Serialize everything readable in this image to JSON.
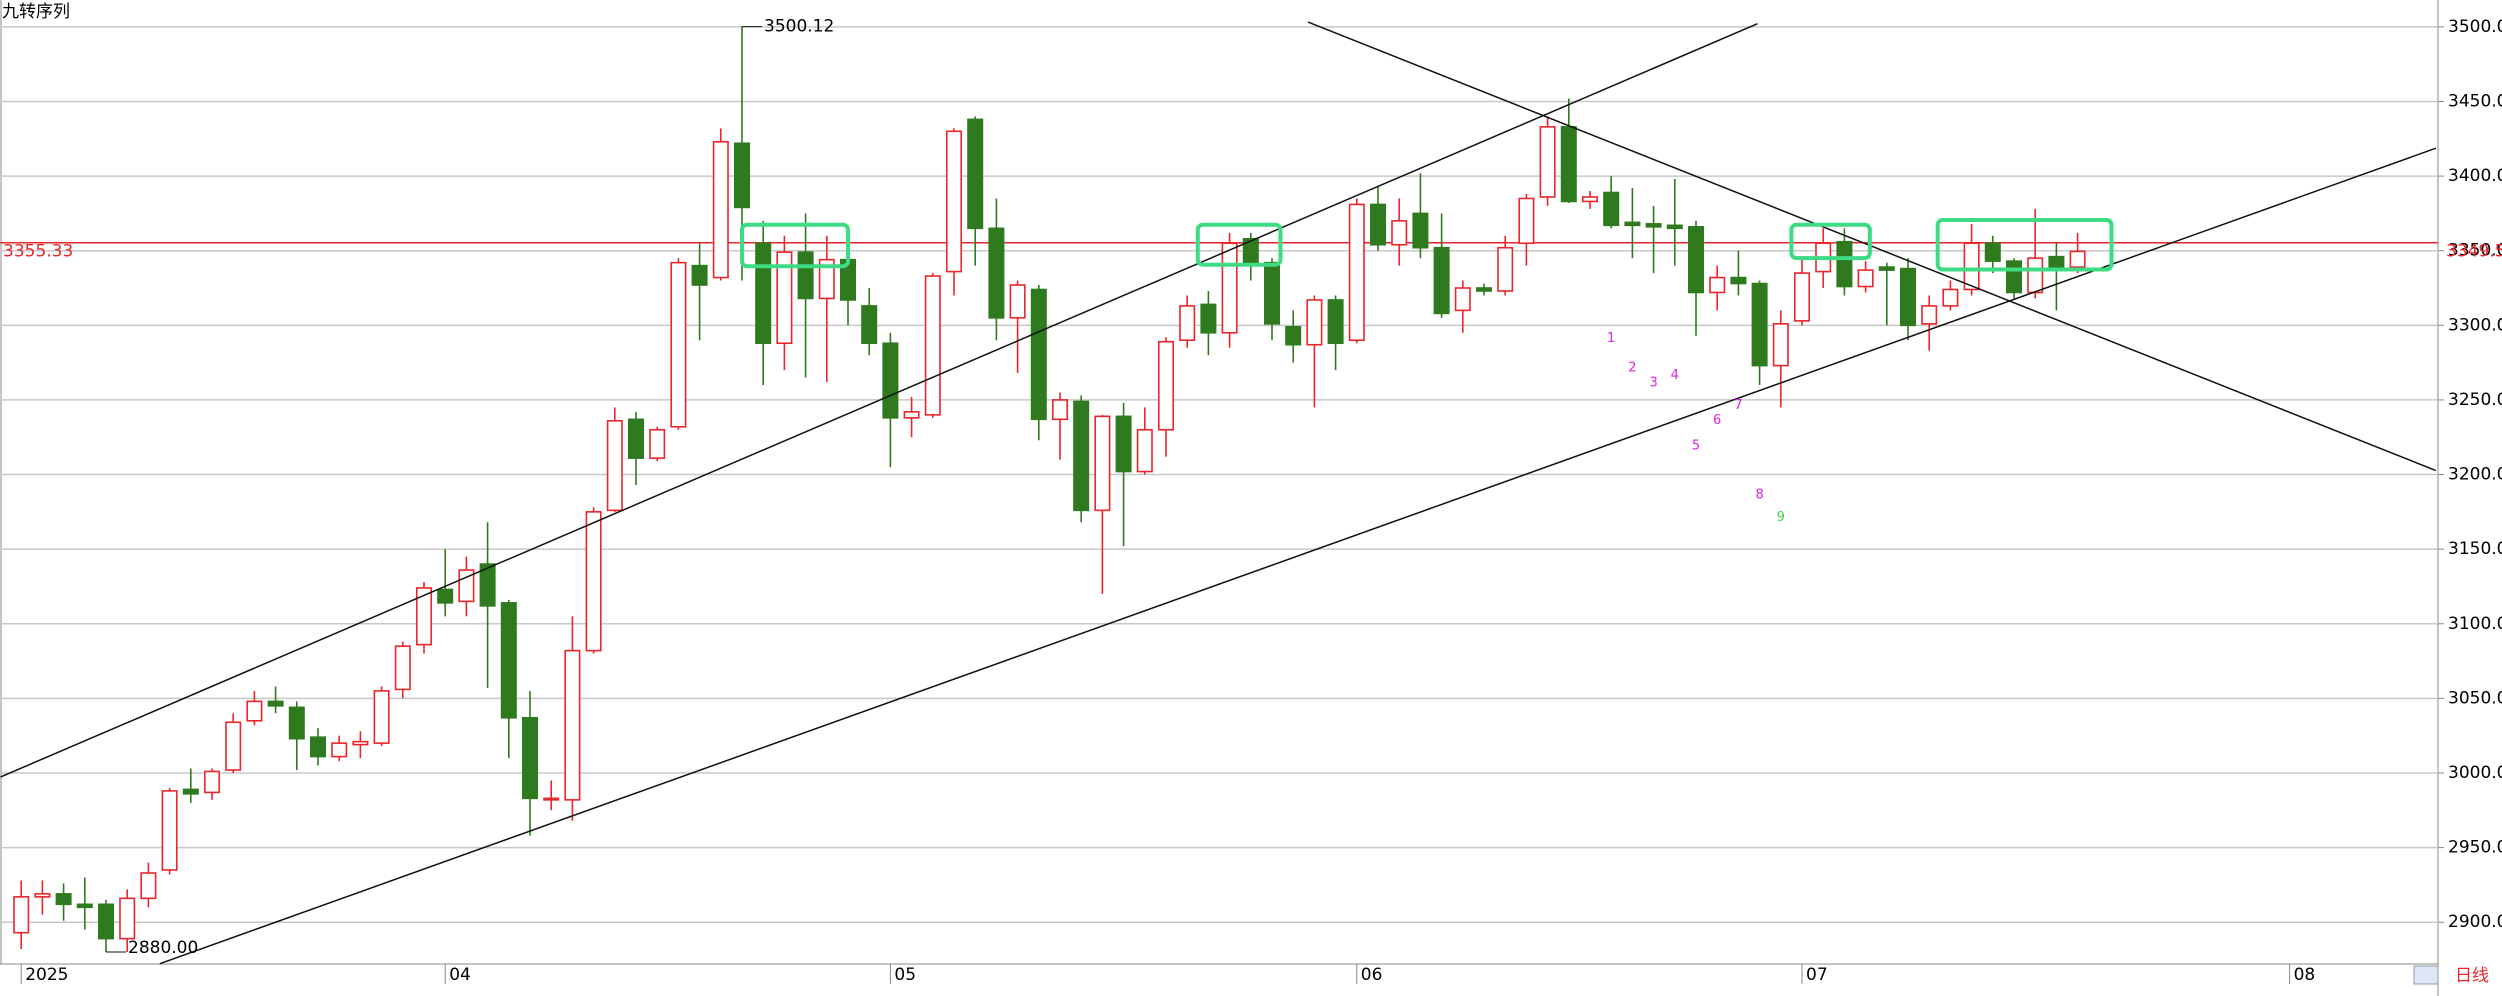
{
  "chart_data": {
    "type": "candlestick",
    "title": "九转序列",
    "period_label": "日线",
    "open": [
      2893,
      2917,
      2919,
      2912,
      2912,
      2889,
      2916,
      2935,
      2989,
      2987,
      3002,
      3035,
      3048,
      3044,
      3024,
      3011,
      3019,
      3020,
      3056,
      3086,
      3123,
      3115,
      3140,
      3114,
      3037,
      2982,
      2982,
      3082,
      3176,
      3237,
      3211,
      3232,
      3340,
      3332,
      3422,
      3355,
      3288,
      3349,
      3318,
      3344,
      3313,
      3288,
      3238,
      3240,
      3336,
      3438,
      3365,
      3305,
      3324,
      3237,
      3249,
      3176,
      3239,
      3202,
      3230,
      3290,
      3314,
      3295,
      3358,
      3342,
      3299,
      3287,
      3317,
      3290,
      3381,
      3354,
      3375,
      3352,
      3310,
      3325,
      3323,
      3355,
      3386,
      3433,
      3383,
      3389,
      3369,
      3368,
      3367,
      3366,
      3322,
      3332,
      3328,
      3273,
      3303,
      3336,
      3356,
      3326,
      3339,
      3338,
      3301,
      3313,
      3324,
      3355,
      3343,
      3322,
      3346,
      3339
    ],
    "high": [
      2928,
      2928,
      2926,
      2930,
      2915,
      2922,
      2940,
      2990,
      3003,
      3003,
      3040,
      3055,
      3058,
      3048,
      3030,
      3025,
      3028,
      3058,
      3088,
      3128,
      3150,
      3145,
      3168,
      3116,
      3055,
      2995,
      3105,
      3178,
      3245,
      3242,
      3232,
      3345,
      3355,
      3432,
      3500.12,
      3370,
      3360,
      3375,
      3360,
      3352,
      3325,
      3295,
      3252,
      3335,
      3432,
      3440,
      3385,
      3330,
      3327,
      3255,
      3253,
      3240,
      3248,
      3245,
      3292,
      3320,
      3323,
      3362,
      3362,
      3345,
      3310,
      3320,
      3320,
      3385,
      3393,
      3385,
      3402,
      3375,
      3330,
      3328,
      3360,
      3388,
      3440,
      3452,
      3390,
      3400,
      3392,
      3380,
      3398,
      3370,
      3340,
      3350,
      3330,
      3310,
      3345,
      3365,
      3365,
      3343,
      3342,
      3345,
      3320,
      3330,
      3368,
      3360,
      3345,
      3378,
      3355,
      3362
    ],
    "low": [
      2882,
      2905,
      2901,
      2895,
      2880,
      2880,
      2910,
      2932,
      2980,
      2982,
      3000,
      3032,
      3040,
      3002,
      3005,
      3008,
      3010,
      3018,
      3050,
      3080,
      3105,
      3105,
      3057,
      3010,
      2958,
      2975,
      2968,
      3080,
      3175,
      3193,
      3209,
      3230,
      3290,
      3330,
      3330,
      3260,
      3270,
      3265,
      3262,
      3300,
      3280,
      3205,
      3225,
      3238,
      3320,
      3340,
      3290,
      3268,
      3223,
      3210,
      3168,
      3120,
      3152,
      3200,
      3212,
      3285,
      3280,
      3285,
      3330,
      3290,
      3275,
      3245,
      3270,
      3288,
      3350,
      3340,
      3345,
      3305,
      3295,
      3320,
      3320,
      3340,
      3380,
      3382,
      3378,
      3365,
      3345,
      3335,
      3340,
      3293,
      3310,
      3320,
      3260,
      3245,
      3300,
      3325,
      3320,
      3322,
      3300,
      3290,
      3283,
      3310,
      3320,
      3335,
      3318,
      3318,
      3310,
      3335
    ],
    "close": [
      2917,
      2919,
      2912,
      2910,
      2889,
      2916,
      2933,
      2988,
      2986,
      3001,
      3034,
      3048,
      3045,
      3023,
      3011,
      3020,
      3021,
      3055,
      3085,
      3124,
      3114,
      3136,
      3112,
      3037,
      2983,
      2983,
      3082,
      3175,
      3236,
      3211,
      3230,
      3342,
      3327,
      3423,
      3379,
      3288,
      3349,
      3318,
      3344,
      3317,
      3288,
      3238,
      3242,
      3333,
      3430,
      3365,
      3305,
      3327,
      3237,
      3250,
      3176,
      3239,
      3202,
      3230,
      3289,
      3313,
      3295,
      3355,
      3340,
      3301,
      3287,
      3317,
      3288,
      3381,
      3354,
      3370,
      3352,
      3308,
      3325,
      3323,
      3352,
      3385,
      3433,
      3383,
      3386,
      3367,
      3367,
      3366,
      3365,
      3322,
      3332,
      3328,
      3273,
      3301,
      3335,
      3355,
      3326,
      3337,
      3337,
      3300,
      3313,
      3324,
      3355,
      3343,
      3322,
      3345,
      3339,
      3349.53
    ],
    "up_color": "#e8262b",
    "down_color": "#2f7a1f",
    "xlim": [
      -1,
      114
    ],
    "ylim": [
      2872,
      3518
    ],
    "xticks": [
      {
        "value": 0,
        "label": "2025"
      },
      {
        "value": 20,
        "label": "04"
      },
      {
        "value": 41,
        "label": "05"
      },
      {
        "value": 63,
        "label": "06"
      },
      {
        "value": 84,
        "label": "07"
      },
      {
        "value": 107,
        "label": "08"
      }
    ],
    "yticks": [
      {
        "value": 2900,
        "label": "2900.00"
      },
      {
        "value": 2950,
        "label": "2950.00"
      },
      {
        "value": 3000,
        "label": "3000.00"
      },
      {
        "value": 3050,
        "label": "3050.00"
      },
      {
        "value": 3100,
        "label": "3100.00"
      },
      {
        "value": 3150,
        "label": "3150.00"
      },
      {
        "value": 3200,
        "label": "3200.00"
      },
      {
        "value": 3250,
        "label": "3250.00"
      },
      {
        "value": 3300,
        "label": "3300.00"
      },
      {
        "value": 3350,
        "label": "3350.00"
      },
      {
        "value": 3400,
        "label": "3400.00"
      },
      {
        "value": 3450,
        "label": "3450.00"
      },
      {
        "value": 3500,
        "label": "3500.00"
      }
    ],
    "grid": true,
    "ref_line": 3355.33,
    "last_price": 3349.53,
    "extreme_labels": [
      {
        "index": 34,
        "value": 3500.12
      },
      {
        "index": 4,
        "value": {
          "value": 2880,
          "label": "2880.00"
        }
      }
    ],
    "trendlines": [
      {
        "x": [
          -0.98,
          81.9
        ],
        "y": [
          2997.3,
          3502.1
        ]
      },
      {
        "x": [
          6.54,
          113.9
        ],
        "y": [
          2872.2,
          3418.7
        ]
      },
      {
        "x": [
          60.7,
          113.9
        ],
        "y": [
          3503.2,
          3202.7
        ]
      }
    ],
    "highlight_boxes": [
      {
        "x": [
          34.0,
          39.0
        ],
        "y": [
          3339.6,
          3367.4
        ]
      },
      {
        "x": [
          55.5,
          59.4
        ],
        "y": [
          3340.6,
          3367.4
        ]
      },
      {
        "x": [
          83.5,
          87.2
        ],
        "y": [
          3345.0,
          3367.4
        ]
      },
      {
        "x": [
          90.4,
          98.6
        ],
        "y": [
          3337.4,
          3370.6
        ]
      }
    ],
    "box_color": "#3ddc84",
    "sequence": {
      "start": 75,
      "labels": [
        1,
        2,
        3,
        4,
        5,
        6,
        7,
        8,
        9
      ],
      "colors": [
        "#e020e0",
        "#e020e0",
        "#e020e0",
        "#e020e0",
        "#e020e0",
        "#e020e0",
        "#e020e0",
        "#e020e0",
        "#40d040"
      ]
    }
  }
}
